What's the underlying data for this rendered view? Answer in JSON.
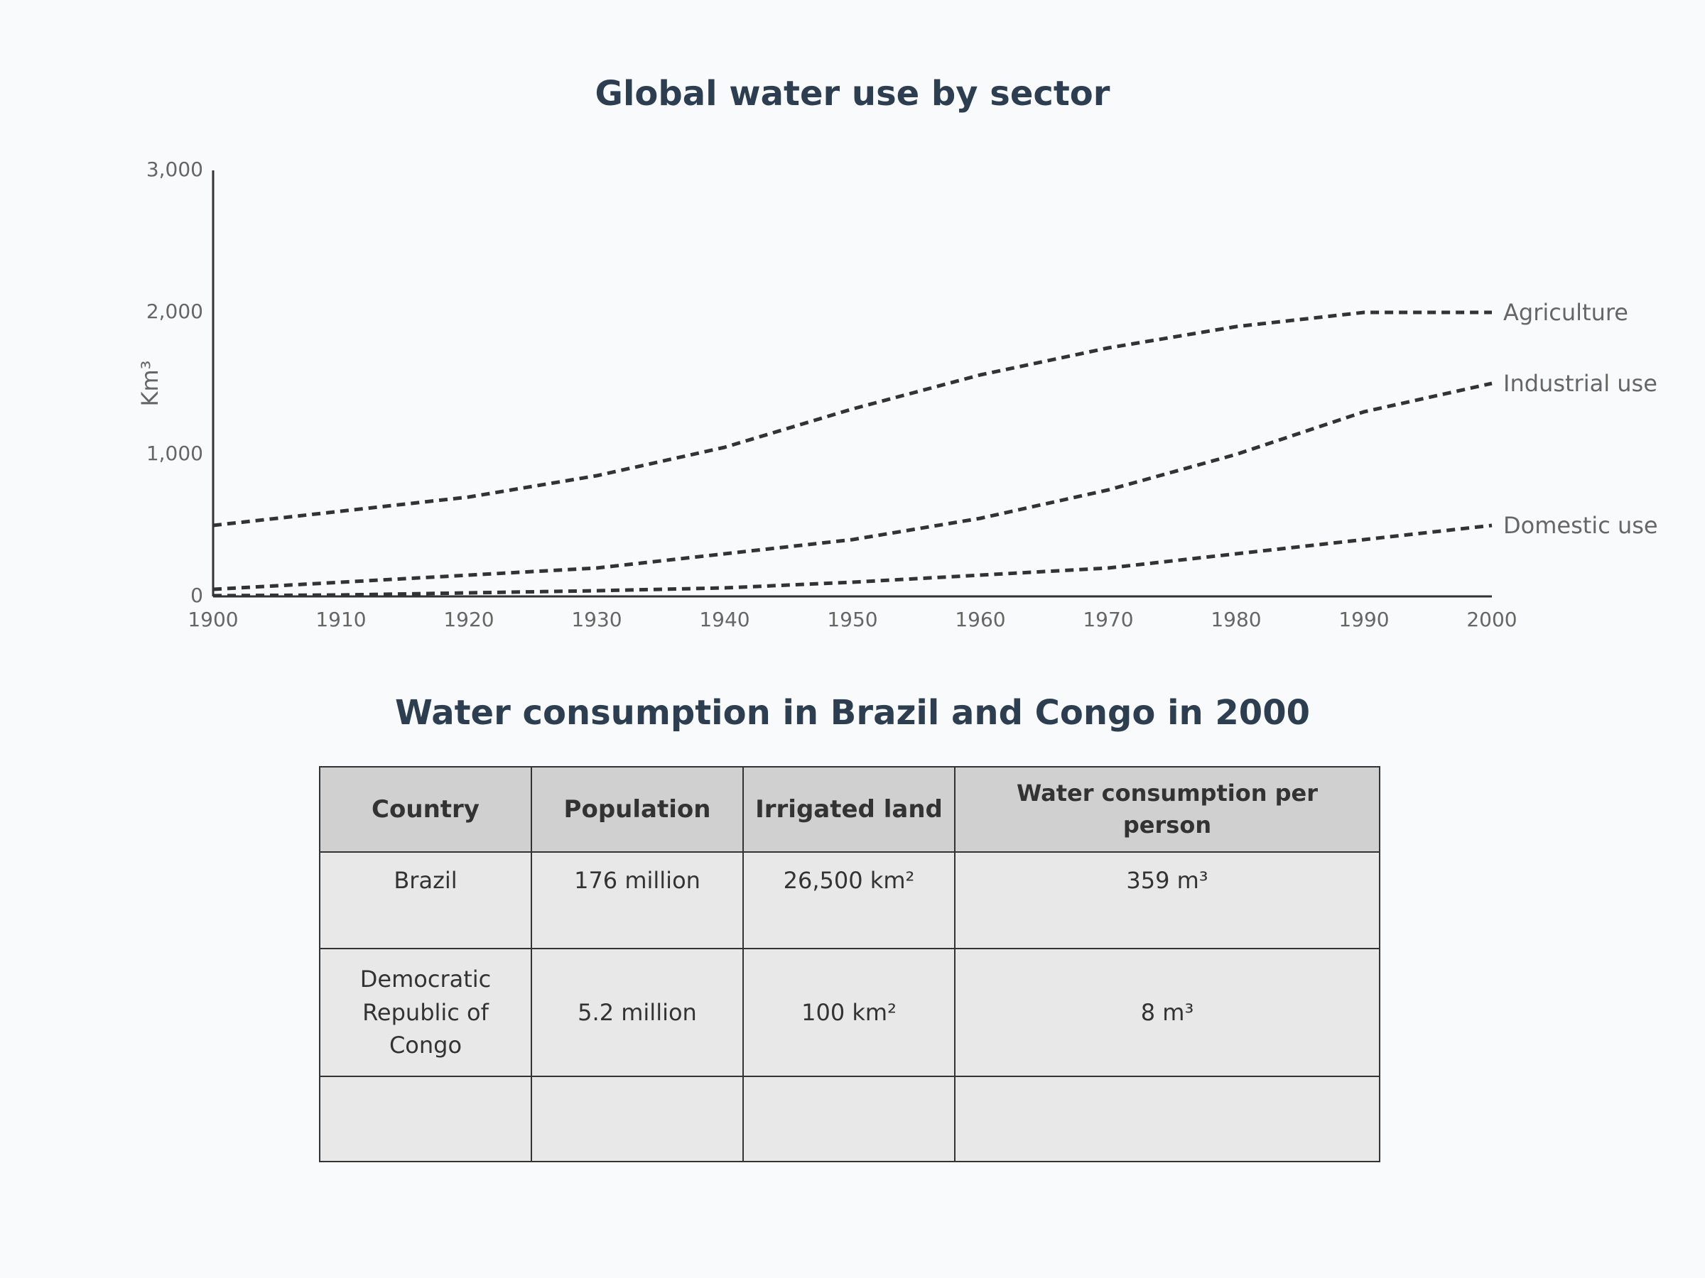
{
  "chart_data": {
    "type": "line",
    "title": "Global water use by sector",
    "xlabel": "",
    "ylabel": "Km³",
    "xlim": [
      1900,
      2000
    ],
    "ylim": [
      0,
      3000
    ],
    "x": [
      1900,
      1910,
      1920,
      1930,
      1940,
      1950,
      1960,
      1970,
      1980,
      1990,
      2000
    ],
    "x_tick_labels": [
      "1900",
      "1910",
      "1920",
      "1930",
      "1940",
      "1950",
      "1960",
      "1970",
      "1980",
      "1990",
      "2000"
    ],
    "y_ticks": [
      0,
      1000,
      2000,
      3000
    ],
    "y_tick_labels": [
      "0",
      "1,000",
      "2,000",
      "3,000"
    ],
    "line_style": "dashed",
    "line_color": "#333333",
    "series": [
      {
        "name": "Agriculture",
        "values": [
          500,
          600,
          700,
          850,
          1050,
          1320,
          1560,
          1750,
          1900,
          2000,
          2000
        ]
      },
      {
        "name": "Industrial use",
        "values": [
          50,
          100,
          150,
          200,
          300,
          400,
          550,
          750,
          1000,
          1300,
          1500
        ]
      },
      {
        "name": "Domestic use",
        "values": [
          5,
          10,
          25,
          40,
          60,
          100,
          150,
          200,
          300,
          400,
          500
        ]
      }
    ]
  },
  "table": {
    "title": "Water consumption in Brazil and Congo in 2000",
    "headers": [
      "Country",
      "Population",
      "Irrigated land",
      "Water consumption per person"
    ],
    "rows": [
      [
        "Brazil",
        "176 million",
        "26,500 km²",
        "359 m³"
      ],
      [
        "Democratic Republic of Congo",
        "5.2 million",
        "100 km²",
        "8 m³"
      ]
    ]
  }
}
